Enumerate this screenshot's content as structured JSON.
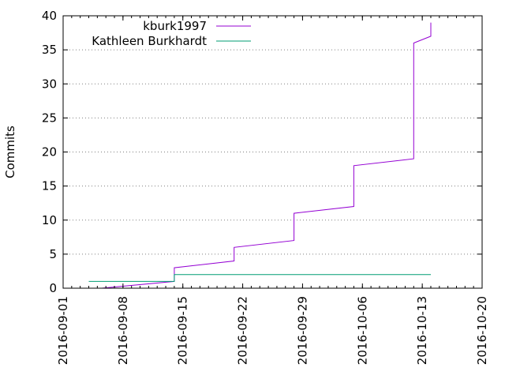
{
  "chart_data": {
    "type": "line",
    "title": "",
    "xlabel": "",
    "ylabel": "Commits",
    "xlim": [
      "2016-09-01",
      "2016-10-20"
    ],
    "ylim": [
      0,
      40
    ],
    "x_ticks": [
      "2016-09-01",
      "2016-09-08",
      "2016-09-15",
      "2016-09-22",
      "2016-09-29",
      "2016-10-06",
      "2016-10-13",
      "2016-10-20"
    ],
    "y_ticks": [
      0,
      5,
      10,
      15,
      20,
      25,
      30,
      35,
      40
    ],
    "grid": "dotted horizontal",
    "legend": "top-left",
    "series": [
      {
        "name": "kburk1997",
        "color": "#9400d3",
        "points": [
          [
            "2016-09-05T12:00",
            0
          ],
          [
            "2016-09-14T00:00",
            1
          ],
          [
            "2016-09-14T00:00",
            3
          ],
          [
            "2016-09-21T00:00",
            4
          ],
          [
            "2016-09-21T00:00",
            6
          ],
          [
            "2016-09-28T00:00",
            7
          ],
          [
            "2016-09-28T00:00",
            11
          ],
          [
            "2016-10-05T00:00",
            12
          ],
          [
            "2016-10-05T00:00",
            18
          ],
          [
            "2016-10-12T00:00",
            19
          ],
          [
            "2016-10-12T00:00",
            36
          ],
          [
            "2016-10-14T00:00",
            37
          ],
          [
            "2016-10-14T00:00",
            39
          ]
        ]
      },
      {
        "name": "Kathleen Burkhardt",
        "color": "#009e73",
        "points": [
          [
            "2016-09-04T00:00",
            1
          ],
          [
            "2016-09-14T00:00",
            1
          ],
          [
            "2016-09-14T00:00",
            2
          ],
          [
            "2016-10-14T00:00",
            2
          ]
        ]
      }
    ]
  }
}
